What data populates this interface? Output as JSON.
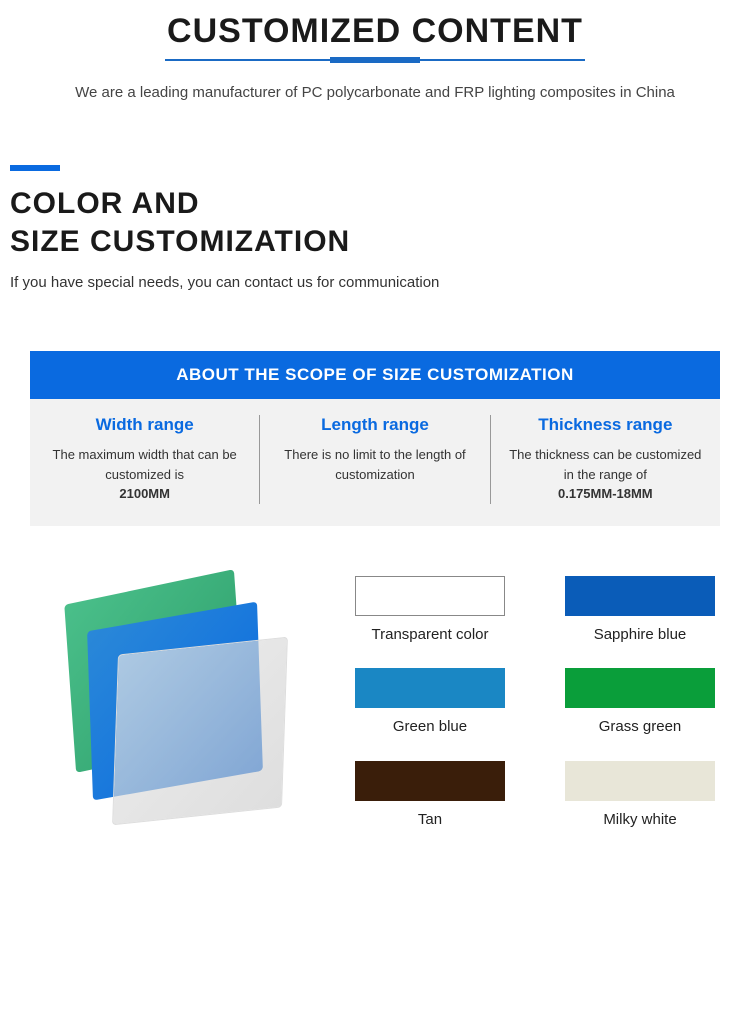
{
  "header": {
    "title": "CUSTOMIZED CONTENT",
    "subtitle": "We are a leading manufacturer of PC polycarbonate and FRP lighting composites in China"
  },
  "section2": {
    "title_line1": "COLOR AND",
    "title_line2": "SIZE CUSTOMIZATION",
    "subtitle": "If you have special needs, you can contact us for communication",
    "accent_color": "#0a6ae0"
  },
  "scope": {
    "header": "ABOUT THE SCOPE OF SIZE CUSTOMIZATION",
    "header_bg": "#0a6ae0",
    "body_bg": "#f2f2f2",
    "columns": [
      {
        "title": "Width range",
        "text_pre": "The maximum width that can be customized is",
        "bold": "2100MM"
      },
      {
        "title": "Length range",
        "text_pre": "There is no limit to the length of customization",
        "bold": ""
      },
      {
        "title": "Thickness range",
        "text_pre": "The thickness can be customized in the range of",
        "bold": "0.175MM-18MM"
      }
    ]
  },
  "colors": {
    "swatches": [
      {
        "label": "Transparent color",
        "color": "#ffffff",
        "border": true
      },
      {
        "label": "Sapphire blue",
        "color": "#0a5cb8"
      },
      {
        "label": "Green blue",
        "color": "#1a87c4"
      },
      {
        "label": "Grass green",
        "color": "#0a9e3a"
      },
      {
        "label": "Tan",
        "color": "#3a1e0a"
      },
      {
        "label": "Milky white",
        "color": "#e8e6d8"
      }
    ],
    "illustration_colors": {
      "sheet_green": "#4abf8a",
      "sheet_blue": "#0a6ae0",
      "sheet_clear": "rgba(220,220,220,0.6)"
    }
  }
}
